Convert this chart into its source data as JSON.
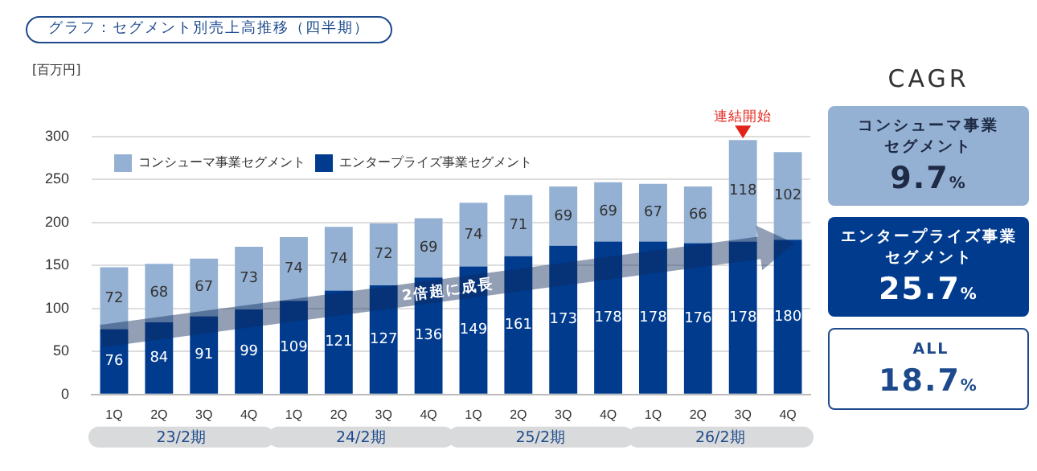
{
  "chart_data": [
    {
      "type": "bar",
      "title": "グラフ：セグメント別売上高推移（四半期）",
      "ylabel": "[百万円]",
      "stacked": true,
      "categories": [
        "1Q",
        "2Q",
        "3Q",
        "4Q",
        "1Q",
        "2Q",
        "3Q",
        "4Q",
        "1Q",
        "2Q",
        "3Q",
        "4Q",
        "1Q",
        "2Q",
        "3Q",
        "4Q"
      ],
      "series": [
        {
          "name": "エンタープライズ事業セグメント",
          "color": "#003b8e",
          "values": [
            76,
            84,
            91,
            99,
            109,
            121,
            127,
            136,
            149,
            161,
            173,
            178,
            178,
            176,
            178,
            180
          ]
        },
        {
          "name": "コンシューマ事業セグメント",
          "color": "#94b1d4",
          "values": [
            72,
            68,
            67,
            73,
            74,
            74,
            72,
            69,
            74,
            71,
            69,
            69,
            67,
            66,
            118,
            102
          ]
        }
      ],
      "ylim": [
        0,
        300
      ],
      "yticks": [
        0,
        50,
        100,
        150,
        200,
        250,
        300
      ],
      "grid": "y",
      "legend": "top left",
      "data_labels": true,
      "annotations": [
        "連結開始",
        "2倍超に成長",
        "23/2期",
        "24/2期",
        "25/2期",
        "26/2期"
      ]
    },
    {
      "type": "other",
      "title": "CAGR",
      "annotations": [
        "コンシューマ事業セグメント",
        "9.7%",
        "エンタープライズ事業セグメント",
        "25.7%",
        "ALL",
        "18.7%"
      ]
    }
  ]
}
